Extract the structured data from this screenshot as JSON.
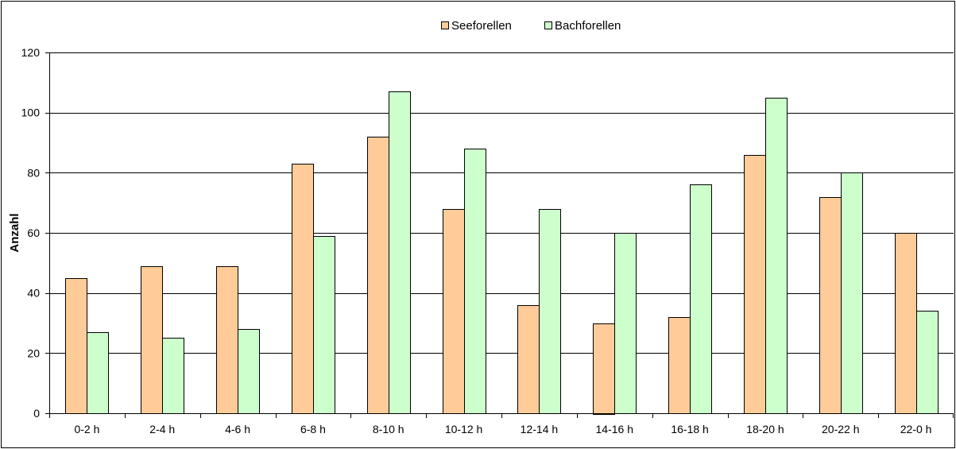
{
  "chart_data": {
    "type": "bar",
    "categories": [
      "0-2 h",
      "2-4 h",
      "4-6 h",
      "6-8 h",
      "8-10 h",
      "10-12 h",
      "12-14 h",
      "14-16 h",
      "16-18 h",
      "18-20 h",
      "20-22 h",
      "22-0 h"
    ],
    "series": [
      {
        "name": "Seeforellen",
        "color": "#FFCC99",
        "values": [
          45,
          49,
          49,
          83,
          92,
          68,
          36,
          30,
          32,
          86,
          72,
          60
        ]
      },
      {
        "name": "Bachforellen",
        "color": "#CCFFCC",
        "values": [
          27,
          25,
          28,
          59,
          107,
          88,
          68,
          60,
          76,
          105,
          80,
          34
        ]
      }
    ],
    "title": "",
    "xlabel": "",
    "ylabel": "Anzahl",
    "ylim": [
      0,
      120
    ],
    "yticks": [
      "0",
      "20",
      "40",
      "60",
      "80",
      "100",
      "120"
    ],
    "grid": true,
    "legend_position": "top-center"
  }
}
